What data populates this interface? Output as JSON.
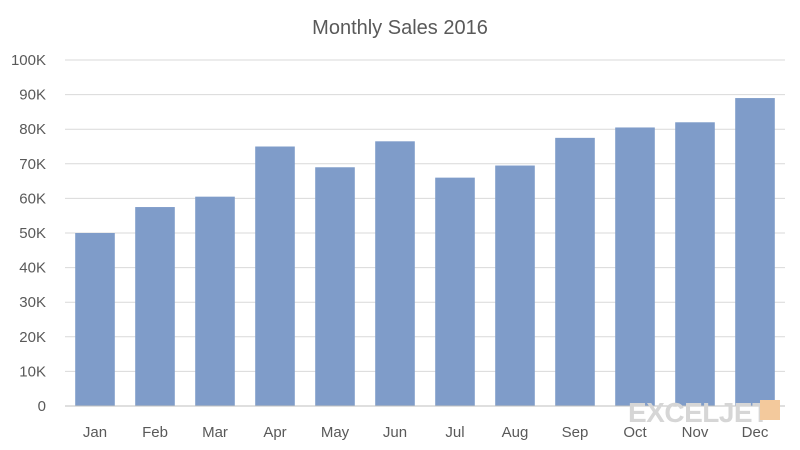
{
  "chart_data": {
    "type": "bar",
    "title": "Monthly Sales 2016",
    "xlabel": "",
    "ylabel": "",
    "categories": [
      "Jan",
      "Feb",
      "Mar",
      "Apr",
      "May",
      "Jun",
      "Jul",
      "Aug",
      "Sep",
      "Oct",
      "Nov",
      "Dec"
    ],
    "series": [
      {
        "values": [
          50000,
          57500,
          60500,
          75000,
          69000,
          76500,
          66000,
          69500,
          77500,
          80500,
          82000,
          89000
        ]
      }
    ],
    "ylim": [
      0,
      100000
    ],
    "ytick_labels": [
      "0",
      "10K",
      "20K",
      "30K",
      "40K",
      "50K",
      "60K",
      "70K",
      "80K",
      "90K",
      "100K"
    ],
    "grid": true,
    "legend": "none",
    "colors": {
      "bar": "#7f9cc9"
    }
  },
  "watermark": {
    "text": "EXCELJET"
  }
}
